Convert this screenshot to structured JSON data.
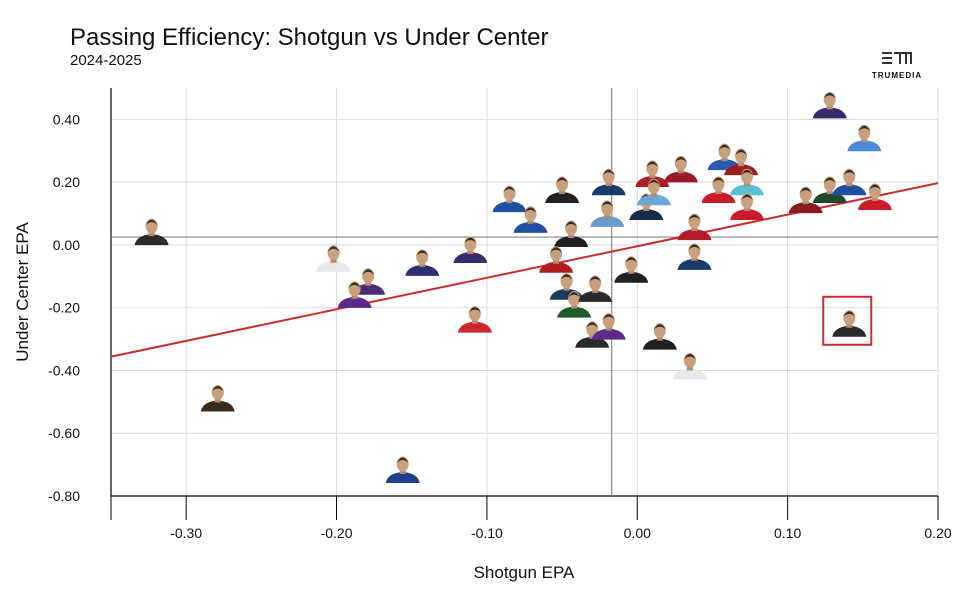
{
  "logo": "TRUMEDIA",
  "chart_data": {
    "type": "scatter",
    "title": "Passing Efficiency: Shotgun vs Under Center",
    "subtitle": "2024-2025",
    "x_label": "Shotgun EPA",
    "y_label": "Under Center EPA",
    "xlim": [
      -0.35,
      0.2
    ],
    "ylim": [
      -0.8,
      0.5
    ],
    "xticks": [
      {
        "value": -0.3,
        "label": "-0.30"
      },
      {
        "value": -0.2,
        "label": "-0.20"
      },
      {
        "value": -0.1,
        "label": "-0.10"
      },
      {
        "value": 0,
        "label": "0.00"
      },
      {
        "value": 0.1,
        "label": "0.10"
      },
      {
        "value": 0.2,
        "label": "0.20"
      }
    ],
    "yticks": [
      {
        "value": 0.4,
        "label": "0.40"
      },
      {
        "value": 0.2,
        "label": "0.20"
      },
      {
        "value": 0,
        "label": "0.00"
      },
      {
        "value": -0.2,
        "label": "-0.20"
      },
      {
        "value": -0.4,
        "label": "-0.40"
      },
      {
        "value": -0.6,
        "label": "-0.60"
      },
      {
        "value": -0.8,
        "label": "-0.80"
      }
    ],
    "grid": true,
    "x_reference": -0.017,
    "y_reference": 0.025,
    "trend_line": {
      "x": [
        -0.35,
        0.2
      ],
      "y": [
        -0.356,
        0.197
      ],
      "color": "#cc2b2b"
    },
    "highlighted_point": 41,
    "x": [
      -0.323,
      -0.279,
      -0.156,
      -0.202,
      -0.179,
      -0.188,
      -0.143,
      -0.111,
      -0.108,
      -0.085,
      -0.071,
      -0.05,
      -0.044,
      -0.054,
      -0.047,
      -0.042,
      -0.028,
      -0.03,
      -0.019,
      -0.02,
      -0.019,
      -0.004,
      0.006,
      0.01,
      0.011,
      0.015,
      0.029,
      0.035,
      0.038,
      0.038,
      0.054,
      0.058,
      0.069,
      0.073,
      0.073,
      0.112,
      0.128,
      0.128,
      0.141,
      0.151,
      0.158,
      0.141
    ],
    "y": [
      0.044,
      -0.486,
      -0.714,
      -0.041,
      -0.114,
      -0.156,
      -0.054,
      -0.013,
      -0.235,
      0.149,
      0.083,
      0.178,
      0.038,
      -0.044,
      -0.13,
      -0.187,
      -0.137,
      -0.283,
      0.203,
      0.102,
      -0.257,
      -0.076,
      0.124,
      0.229,
      0.171,
      -0.289,
      0.244,
      -0.384,
      0.06,
      -0.035,
      0.178,
      0.283,
      0.267,
      0.203,
      0.124,
      0.146,
      0.178,
      0.448,
      0.203,
      0.343,
      0.156,
      -0.248
    ],
    "colors": [
      "#2b2b2b",
      "#3a2b20",
      "#1f3f8f",
      "#e8e8e8",
      "#4a2b7a",
      "#5b2b8a",
      "#2e2f6e",
      "#3b2b6e",
      "#c8282e",
      "#1f4fa0",
      "#1f4fa0",
      "#202020",
      "#202020",
      "#b01c1c",
      "#1a3a5a",
      "#1f5a2a",
      "#2a2a2a",
      "#2a2a2a",
      "#1a3a6a",
      "#6a9ac8",
      "#5a2b8a",
      "#202020",
      "#1a2a4a",
      "#b01c2a",
      "#6aa8d8",
      "#202020",
      "#9a1a2a",
      "#e8e8e8",
      "#b01c2a",
      "#1a3a6a",
      "#c81c2a",
      "#2a5ab0",
      "#a01c1c",
      "#5ac0d0",
      "#c81c2a",
      "#8a1c1c",
      "#1f4a2a",
      "#3a2a6a",
      "#1f4fa0",
      "#4a8ad8",
      "#c81c2a",
      "#2a2a2a"
    ]
  }
}
